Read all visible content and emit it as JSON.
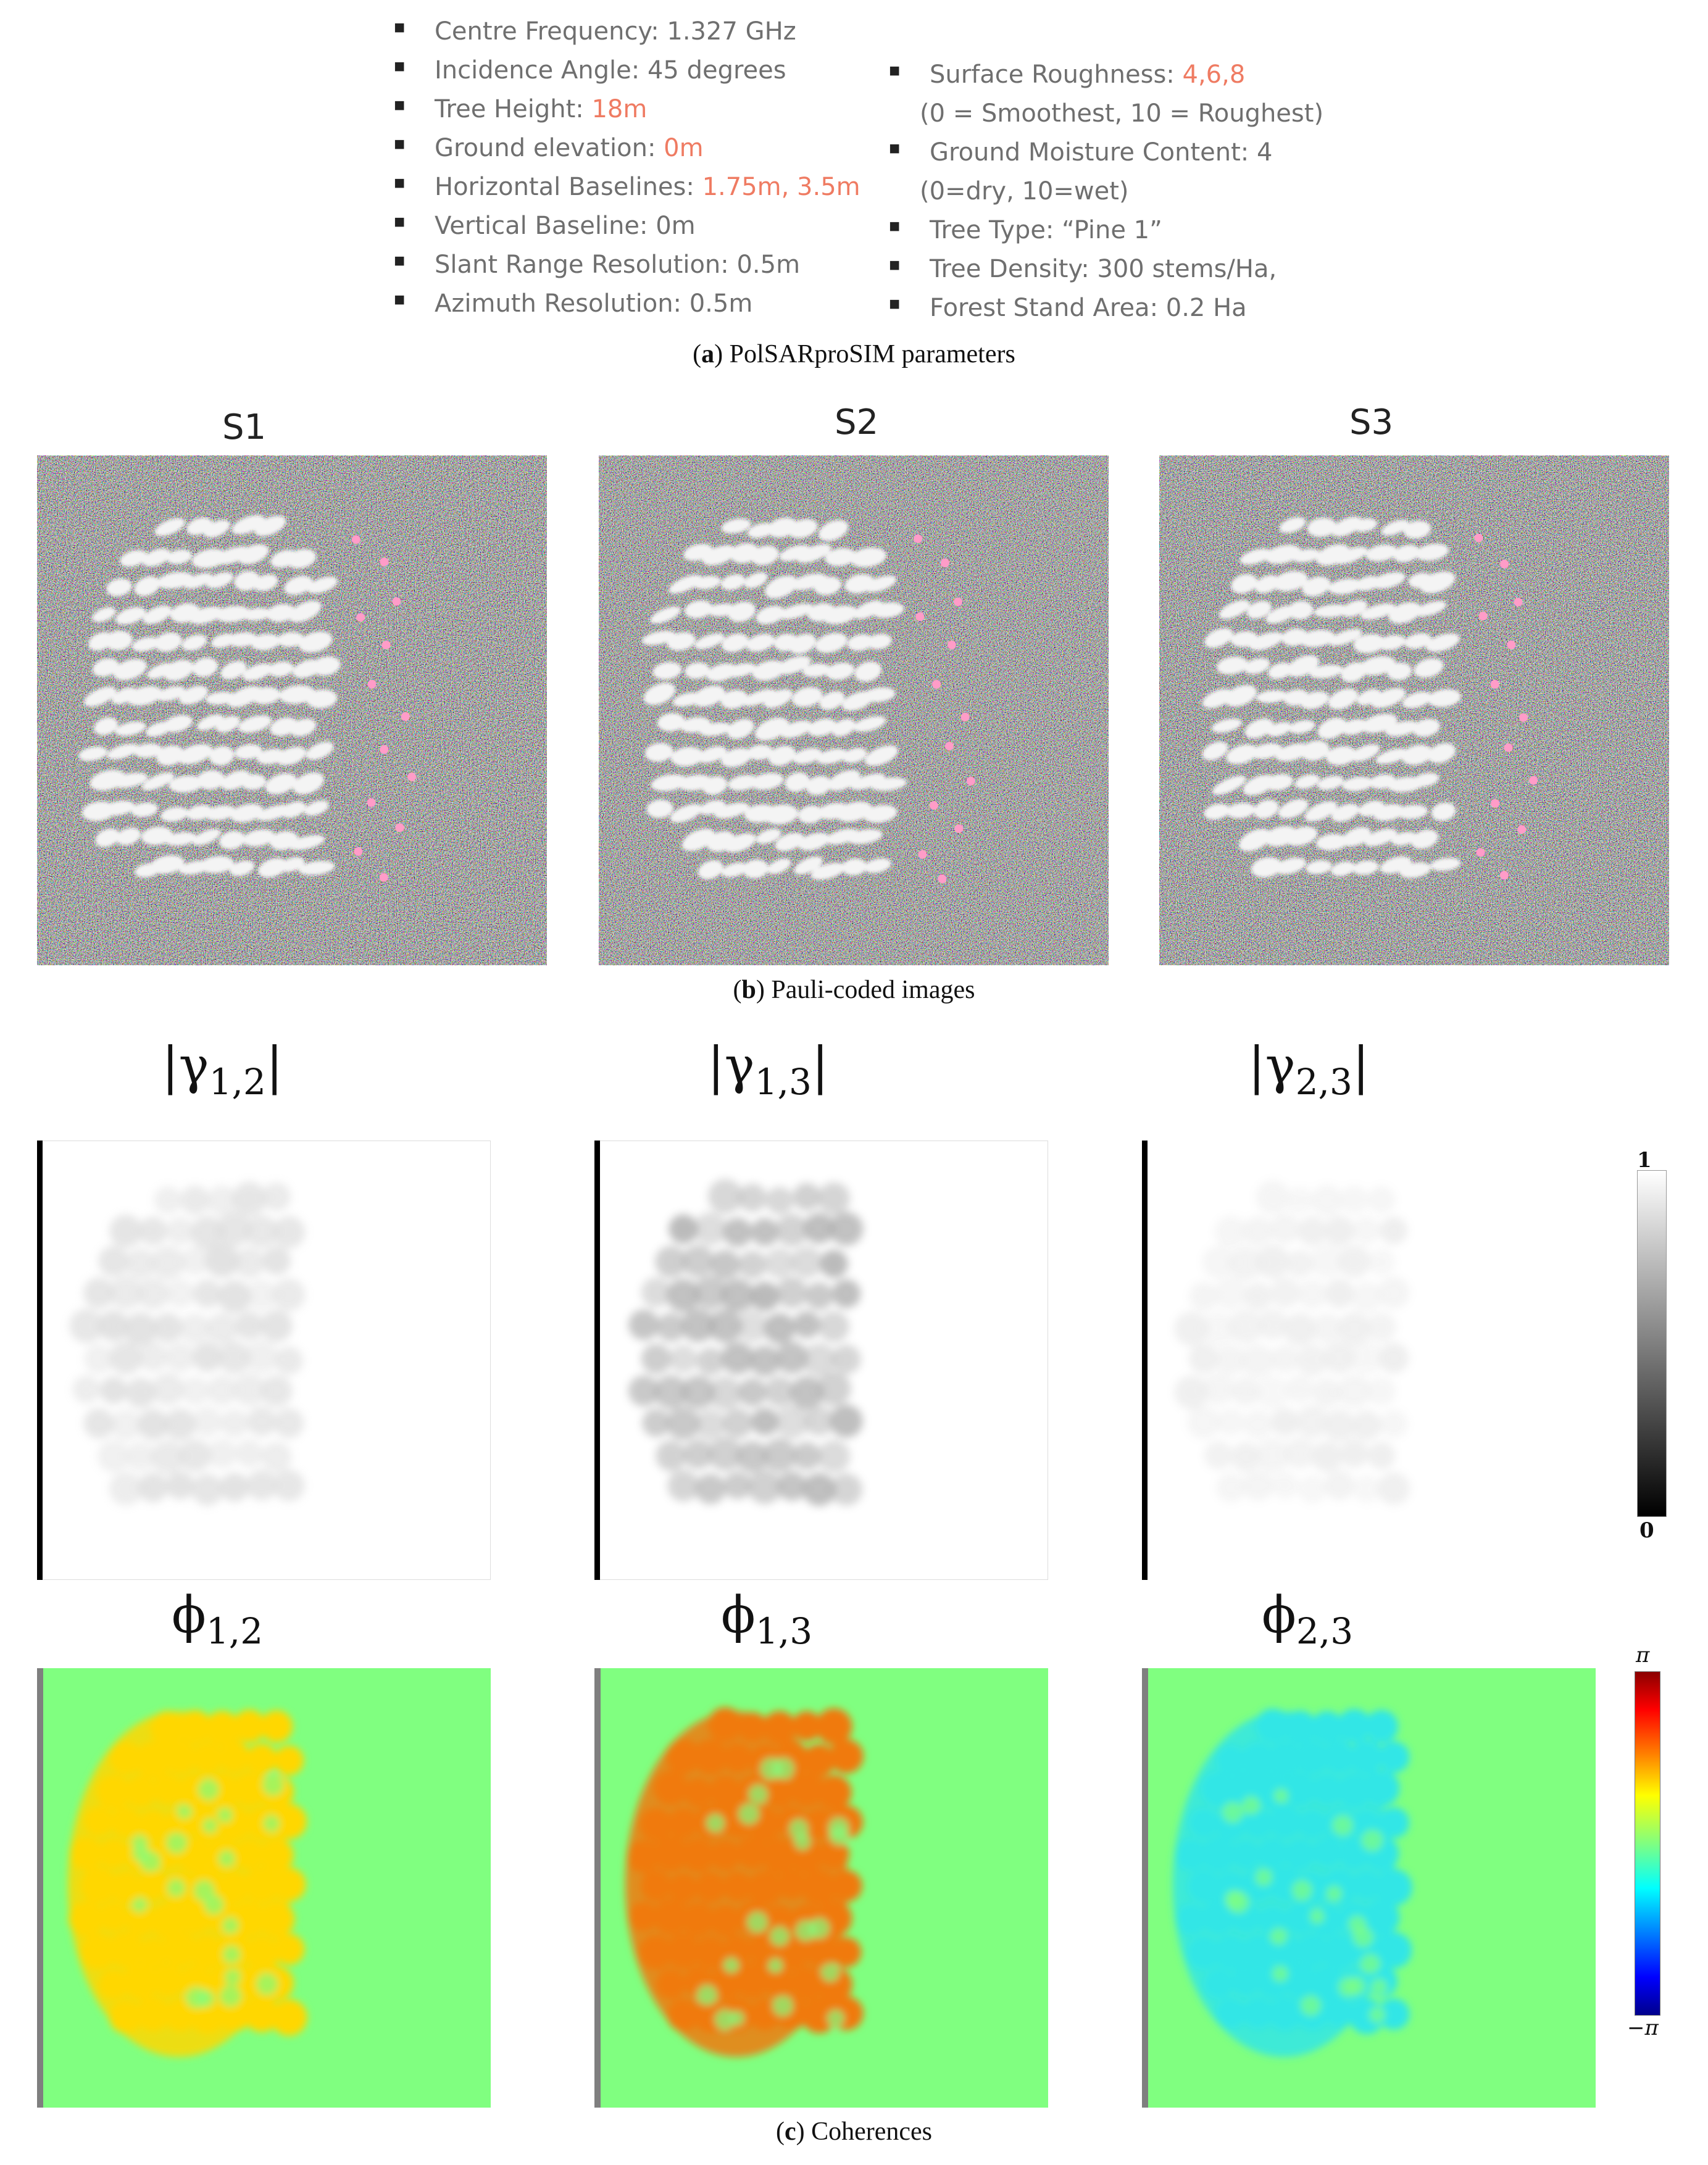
{
  "parameters": {
    "left": [
      {
        "label": "Centre Frequency: ",
        "value": "1.327 GHz",
        "highlight": false
      },
      {
        "label": "Incidence Angle: ",
        "value": "45 degrees",
        "highlight": false
      },
      {
        "label": "Tree Height: ",
        "value": "18m",
        "highlight": true
      },
      {
        "label": "Ground elevation: ",
        "value": "0m",
        "highlight": true
      },
      {
        "label": "Horizontal Baselines: ",
        "value": "1.75m, 3.5m",
        "highlight": true
      },
      {
        "label": "Vertical Baseline: ",
        "value": "0m",
        "highlight": false
      },
      {
        "label": "Slant Range Resolution: ",
        "value": "0.5m",
        "highlight": false
      },
      {
        "label": "Azimuth Resolution: ",
        "value": "0.5m",
        "highlight": false
      }
    ],
    "right": [
      {
        "label": "Surface Roughness: ",
        "value": "4,6,8",
        "highlight": true,
        "note": "(0 = Smoothest, 10 = Roughest)"
      },
      {
        "label": "Ground Moisture Content: ",
        "value": "4",
        "highlight": false,
        "note": "(0=dry, 10=wet)"
      },
      {
        "label": "Tree Type: ",
        "value": "“Pine 1”",
        "highlight": false
      },
      {
        "label": "Tree Density: ",
        "value": "300 stems/Ha,",
        "highlight": false
      },
      {
        "label": "Forest Stand Area: ",
        "value": "0.2 Ha",
        "highlight": false
      }
    ]
  },
  "captions": {
    "a": {
      "letter": "a",
      "text": " PolSARproSIM parameters"
    },
    "b": {
      "letter": "b",
      "text": " Pauli-coded images"
    },
    "c": {
      "letter": "c",
      "text": " Coherences"
    }
  },
  "pauli_labels": [
    "S1",
    "S2",
    "S3"
  ],
  "coherence_labels": [
    {
      "symbol": "γ",
      "sub": "1,2"
    },
    {
      "symbol": "γ",
      "sub": "1,3"
    },
    {
      "symbol": "γ",
      "sub": "2,3"
    }
  ],
  "phase_labels": [
    {
      "symbol": "ϕ",
      "sub": "1,2"
    },
    {
      "symbol": "ϕ",
      "sub": "1,3"
    },
    {
      "symbol": "ϕ",
      "sub": "2,3"
    }
  ],
  "colorbars": {
    "coherence": {
      "max": "1",
      "min": "0"
    },
    "phase": {
      "max": "π",
      "min": "−π"
    }
  },
  "colors": {
    "highlight": "#ef7b62",
    "phase_background": "#80ff80",
    "phase_12": "#ffd700",
    "phase_13": "#f07a10",
    "phase_23": "#33e6e6"
  }
}
